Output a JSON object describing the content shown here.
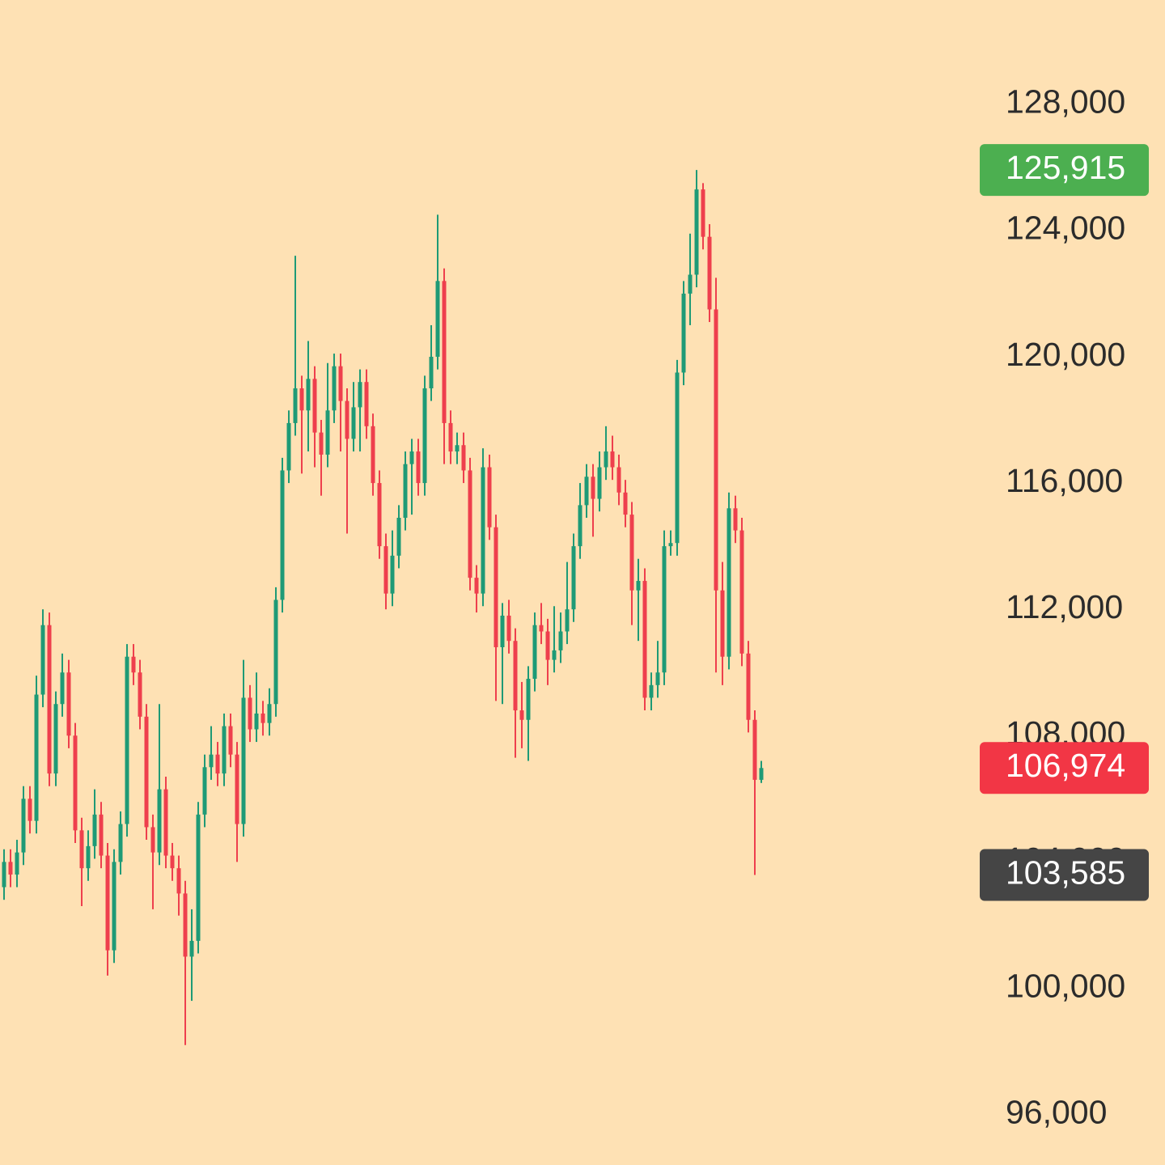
{
  "chart_data": {
    "type": "candlestick",
    "up_color": "#1e9a76",
    "down_color": "#ee3f4d",
    "ylim": [
      94400,
      131300
    ],
    "yticks": [
      {
        "value": 128000,
        "label": "128,000"
      },
      {
        "value": 124000,
        "label": "124,000"
      },
      {
        "value": 120000,
        "label": "120,000"
      },
      {
        "value": 116000,
        "label": "116,000"
      },
      {
        "value": 112000,
        "label": "112,000"
      },
      {
        "value": 108000,
        "label": "108,000"
      },
      {
        "value": 104000,
        "label": "104,000"
      },
      {
        "value": 100000,
        "label": "100,000"
      },
      {
        "value": 96000,
        "label": "96,000"
      }
    ],
    "price_tags": [
      {
        "value": 125915,
        "label": "125,915",
        "color": "#4caf50"
      },
      {
        "value": 106974,
        "label": "106,974",
        "color": "#f23645"
      },
      {
        "value": 103585,
        "label": "103,585",
        "color": "#454545"
      }
    ],
    "open": [
      103200,
      104000,
      103600,
      104300,
      106000,
      105300,
      109300,
      111500,
      106800,
      109000,
      110000,
      108000,
      105000,
      103800,
      104500,
      105500,
      104200,
      101200,
      104000,
      105200,
      110500,
      110000,
      108600,
      105100,
      104300,
      106300,
      104200,
      103800,
      103000,
      101000,
      101500,
      105500,
      107000,
      107400,
      106800,
      108300,
      107400,
      105200,
      109200,
      108200,
      108700,
      108400,
      109000,
      112300,
      116400,
      117900,
      119000,
      118300,
      119300,
      117600,
      116900,
      118300,
      119700,
      118600,
      117400,
      118400,
      119200,
      117800,
      116000,
      114000,
      112500,
      113700,
      114900,
      116600,
      117000,
      116000,
      119000,
      120000,
      122400,
      117900,
      117000,
      117200,
      116400,
      113000,
      112500,
      116500,
      114600,
      110800,
      111800,
      111000,
      108800,
      108500,
      109800,
      111500,
      111300,
      110400,
      110700,
      111300,
      112000,
      114000,
      115300,
      116200,
      115500,
      116500,
      117000,
      116500,
      115700,
      115000,
      112600,
      112900,
      109200,
      109600,
      110000,
      114000,
      114100,
      119500,
      122000,
      122600,
      125300,
      123800,
      121500,
      112600,
      110500,
      115200,
      114500,
      110600,
      108500,
      106600
    ],
    "high": [
      104400,
      104400,
      104700,
      106400,
      106400,
      109900,
      112000,
      111900,
      109400,
      110600,
      110400,
      108400,
      105400,
      105000,
      106300,
      105900,
      104600,
      104400,
      105600,
      110900,
      110900,
      110400,
      109000,
      105500,
      109000,
      106700,
      104600,
      104200,
      103400,
      102500,
      105900,
      107400,
      108300,
      107800,
      108700,
      108700,
      107800,
      110400,
      109600,
      110000,
      109100,
      109500,
      112700,
      116800,
      118300,
      123200,
      119400,
      120500,
      119700,
      118000,
      119800,
      120100,
      120100,
      119000,
      119200,
      119600,
      119600,
      118200,
      116400,
      114400,
      114500,
      115300,
      117000,
      117400,
      117400,
      119400,
      121000,
      124500,
      122800,
      118300,
      117600,
      117600,
      116800,
      113400,
      117100,
      116900,
      115000,
      112200,
      112300,
      111400,
      109700,
      110200,
      111900,
      112200,
      111700,
      112100,
      111900,
      113500,
      114400,
      116000,
      116600,
      116600,
      117000,
      117800,
      117500,
      116900,
      116100,
      115400,
      113600,
      113300,
      110000,
      111000,
      114500,
      114500,
      119900,
      122400,
      123900,
      125915,
      125500,
      124200,
      122500,
      113500,
      115700,
      115600,
      114900,
      111000,
      108800,
      107200
    ],
    "low": [
      102800,
      103200,
      103200,
      103900,
      104900,
      104900,
      108900,
      106400,
      106400,
      108600,
      107600,
      104600,
      102600,
      103400,
      104100,
      103800,
      100400,
      100800,
      103600,
      104800,
      109600,
      108200,
      104700,
      102500,
      103900,
      103800,
      103400,
      102300,
      98200,
      99600,
      101100,
      105100,
      106600,
      106400,
      106400,
      107000,
      104000,
      104800,
      107800,
      107800,
      108000,
      108000,
      108600,
      111900,
      116000,
      117500,
      116300,
      117000,
      116500,
      115600,
      116500,
      117900,
      117000,
      114400,
      117000,
      117000,
      117400,
      115600,
      113600,
      112000,
      112100,
      113300,
      114500,
      115000,
      115600,
      115600,
      118600,
      119600,
      116600,
      116600,
      116600,
      116000,
      112600,
      111900,
      112100,
      114200,
      109100,
      109000,
      110600,
      107300,
      107600,
      107200,
      109400,
      110900,
      109600,
      110000,
      110300,
      110900,
      111600,
      113600,
      114900,
      114300,
      115100,
      116100,
      116100,
      115300,
      114600,
      111500,
      111000,
      108800,
      108800,
      109200,
      109600,
      113700,
      113700,
      119100,
      121000,
      122200,
      123400,
      121100,
      110000,
      109600,
      110100,
      114100,
      110200,
      108100,
      103585,
      106500
    ],
    "close": [
      104000,
      103600,
      104300,
      106000,
      105300,
      109300,
      111500,
      106800,
      109000,
      110000,
      108000,
      105000,
      103800,
      104500,
      105500,
      104200,
      101200,
      104000,
      105200,
      110500,
      110000,
      108600,
      105100,
      104300,
      106300,
      104200,
      103800,
      103000,
      101000,
      101500,
      105500,
      107000,
      107400,
      106800,
      108300,
      107400,
      105200,
      109200,
      108200,
      108700,
      108400,
      109000,
      112300,
      116400,
      117900,
      119000,
      118300,
      119300,
      117600,
      116900,
      118300,
      119700,
      118600,
      117400,
      118400,
      119200,
      117800,
      116000,
      114000,
      112500,
      113700,
      114900,
      116600,
      117000,
      116000,
      119000,
      120000,
      122400,
      117900,
      117000,
      117200,
      116400,
      113000,
      112500,
      116500,
      114600,
      110800,
      111800,
      111000,
      108800,
      108500,
      109800,
      111500,
      111300,
      110400,
      110700,
      111300,
      112000,
      114000,
      115300,
      116200,
      115500,
      116500,
      117000,
      116500,
      115700,
      115000,
      112600,
      112900,
      109200,
      109600,
      110000,
      114000,
      114100,
      119500,
      122000,
      122600,
      125300,
      123800,
      121500,
      112600,
      110500,
      115200,
      114500,
      110600,
      108500,
      106600,
      106974
    ]
  }
}
